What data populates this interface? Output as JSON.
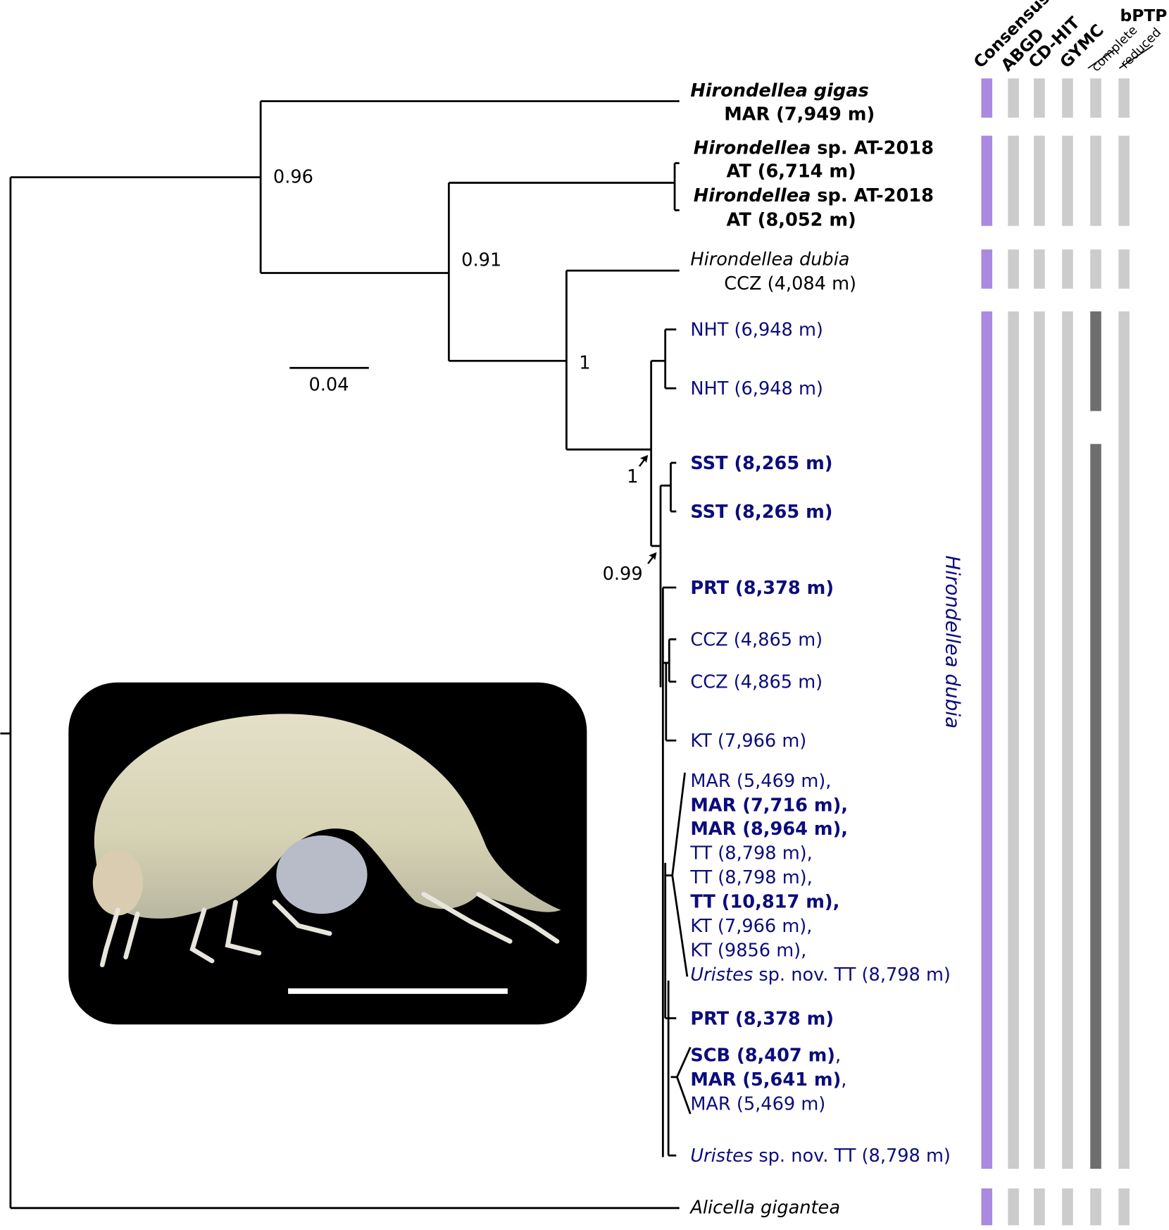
{
  "colors": {
    "tree": "#000000",
    "dubia_text": "#0c0c7c",
    "consensus": "#a98ae0",
    "method_bar": "#cccccc",
    "bptp_complete_dark": "#6e6e6e",
    "photo_bg": "#000000"
  },
  "header": {
    "columns": [
      "Consensus",
      "ABGD",
      "CD-HIT",
      "GYMC",
      "complete",
      "reduced"
    ],
    "bptp": "bPTP"
  },
  "support": [
    "0.96",
    "0.91",
    "1",
    "1",
    "0.99"
  ],
  "scale_bar": "0.04",
  "clade_label": "Hirondellea dubia",
  "tips": [
    {
      "parts": [
        {
          "t": "Hirondellea gigas",
          "i": true,
          "b": true
        }
      ],
      "c": "k"
    },
    {
      "parts": [
        {
          "t": "MAR (7,949 m)",
          "b": true
        }
      ],
      "c": "k"
    },
    {
      "parts": [
        {
          "t": "Hirondellea",
          "i": true,
          "b": true
        },
        {
          "t": " sp. AT-2018",
          "b": true
        }
      ],
      "c": "k"
    },
    {
      "parts": [
        {
          "t": "AT (6,714 m)",
          "b": true
        }
      ],
      "c": "k"
    },
    {
      "parts": [
        {
          "t": "Hirondellea",
          "i": true,
          "b": true
        },
        {
          "t": " sp. AT-2018",
          "b": true
        }
      ],
      "c": "k"
    },
    {
      "parts": [
        {
          "t": "AT (8,052 m)",
          "b": true
        }
      ],
      "c": "k"
    },
    {
      "parts": [
        {
          "t": "Hirondellea dubia",
          "i": true
        }
      ],
      "c": "k"
    },
    {
      "parts": [
        {
          "t": "CCZ (4,084 m)"
        }
      ],
      "c": "k"
    },
    {
      "parts": [
        {
          "t": "NHT (6,948 m)"
        }
      ],
      "c": "b"
    },
    {
      "parts": [
        {
          "t": "NHT (6,948 m)"
        }
      ],
      "c": "b"
    },
    {
      "parts": [
        {
          "t": "SST (8,265 m)",
          "b": true
        }
      ],
      "c": "b"
    },
    {
      "parts": [
        {
          "t": "SST (8,265 m)",
          "b": true
        }
      ],
      "c": "b"
    },
    {
      "parts": [
        {
          "t": "PRT (8,378 m)",
          "b": true
        }
      ],
      "c": "b"
    },
    {
      "parts": [
        {
          "t": "CCZ (4,865 m)"
        }
      ],
      "c": "b"
    },
    {
      "parts": [
        {
          "t": "CCZ (4,865 m)"
        }
      ],
      "c": "b"
    },
    {
      "parts": [
        {
          "t": "KT (7,966 m)"
        }
      ],
      "c": "b"
    },
    {
      "parts": [
        {
          "t": "MAR (5,469 m),"
        }
      ],
      "c": "b"
    },
    {
      "parts": [
        {
          "t": "MAR (7,716 m),",
          "b": true
        }
      ],
      "c": "b"
    },
    {
      "parts": [
        {
          "t": "MAR (8,964 m),",
          "b": true
        }
      ],
      "c": "b"
    },
    {
      "parts": [
        {
          "t": "TT (8,798 m),"
        }
      ],
      "c": "b"
    },
    {
      "parts": [
        {
          "t": "TT (8,798 m),"
        }
      ],
      "c": "b"
    },
    {
      "parts": [
        {
          "t": "TT (10,817 m),",
          "b": true
        }
      ],
      "c": "b"
    },
    {
      "parts": [
        {
          "t": "KT (7,966 m),"
        }
      ],
      "c": "b"
    },
    {
      "parts": [
        {
          "t": "KT (9856 m),"
        }
      ],
      "c": "b"
    },
    {
      "parts": [
        {
          "t": "Uristes",
          "i": true
        },
        {
          "t": " sp. nov. TT (8,798 m)"
        }
      ],
      "c": "b"
    },
    {
      "parts": [
        {
          "t": "PRT (8,378 m)",
          "b": true
        }
      ],
      "c": "b"
    },
    {
      "parts": [
        {
          "t": "SCB (8,407 m)",
          "b": true
        },
        {
          "t": ","
        }
      ],
      "c": "b"
    },
    {
      "parts": [
        {
          "t": "MAR (5,641 m)",
          "b": true
        },
        {
          "t": ","
        }
      ],
      "c": "b"
    },
    {
      "parts": [
        {
          "t": "MAR (5,469 m)"
        }
      ],
      "c": "b"
    },
    {
      "parts": [
        {
          "t": "Uristes",
          "i": true
        },
        {
          "t": " sp. nov. TT (8,798 m)"
        }
      ],
      "c": "b"
    },
    {
      "parts": [
        {
          "t": "Alicella gigantea",
          "i": true
        }
      ],
      "c": "k"
    }
  ]
}
